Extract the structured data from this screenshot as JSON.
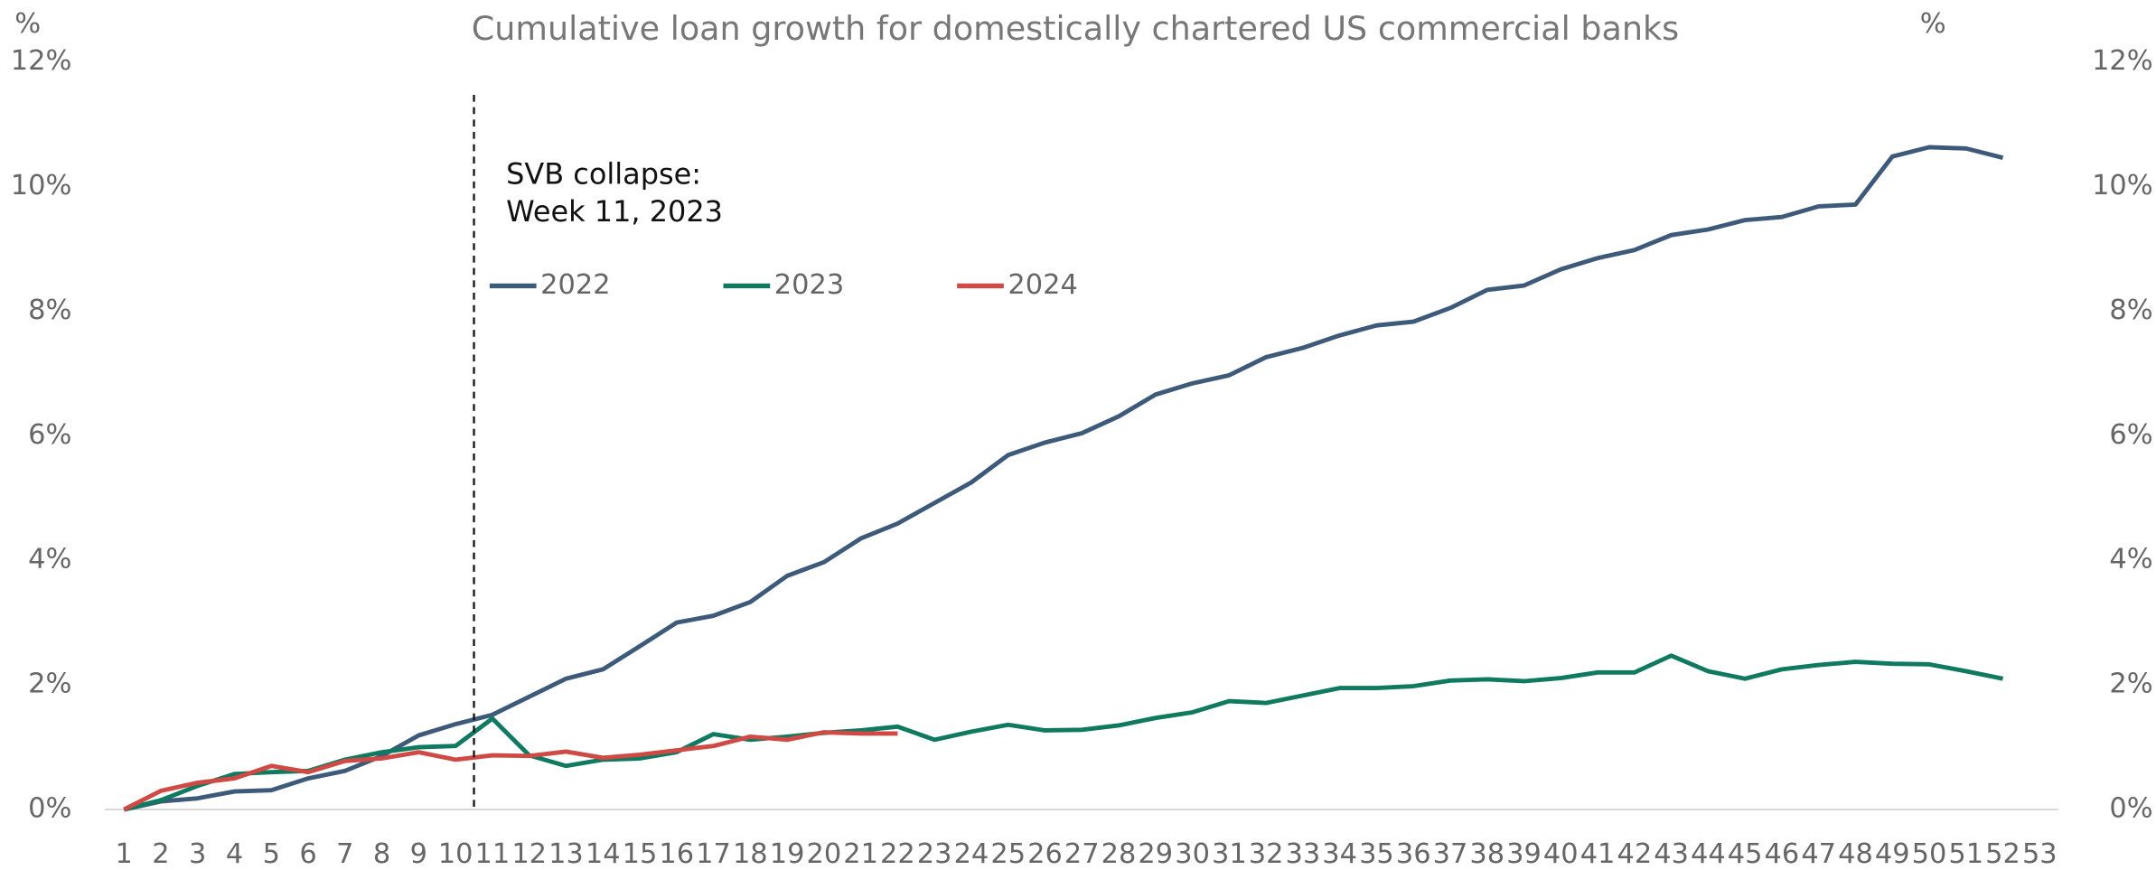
{
  "chart_data": {
    "type": "line",
    "title": "Cumulative loan growth for domestically chartered US commercial banks",
    "y_label": "%",
    "y2_label": "%",
    "categories": [
      "1",
      "2",
      "3",
      "4",
      "5",
      "6",
      "7",
      "8",
      "9",
      "10",
      "11",
      "12",
      "13",
      "14",
      "15",
      "16",
      "17",
      "18",
      "19",
      "20",
      "21",
      "22",
      "23",
      "24",
      "25",
      "26",
      "27",
      "28",
      "29",
      "30",
      "31",
      "32",
      "33",
      "34",
      "35",
      "36",
      "37",
      "38",
      "39",
      "40",
      "41",
      "42",
      "43",
      "44",
      "45",
      "46",
      "47",
      "48",
      "49",
      "50",
      "51",
      "52",
      "53"
    ],
    "series": [
      {
        "name": "2022",
        "color": "#3d5a7a",
        "values": [
          0,
          0.13,
          0.18,
          0.29,
          0.31,
          0.5,
          0.62,
          0.86,
          1.19,
          1.37,
          1.52,
          1.81,
          2.1,
          2.25,
          2.62,
          3.0,
          3.11,
          3.33,
          3.75,
          3.97,
          4.35,
          4.59,
          4.92,
          5.25,
          5.69,
          5.89,
          6.04,
          6.31,
          6.66,
          6.84,
          6.97,
          7.26,
          7.41,
          7.61,
          7.77,
          7.83,
          8.05,
          8.34,
          8.41,
          8.67,
          8.85,
          8.98,
          9.22,
          9.31,
          9.46,
          9.51,
          9.68,
          9.71,
          10.48,
          10.63,
          10.61,
          10.46,
          null
        ]
      },
      {
        "name": "2023",
        "color": "#0f7a5f",
        "values": [
          0,
          0.15,
          0.38,
          0.57,
          0.6,
          0.62,
          0.8,
          0.92,
          1.0,
          1.02,
          1.46,
          0.87,
          0.7,
          0.8,
          0.82,
          0.92,
          1.21,
          1.12,
          1.17,
          1.23,
          1.27,
          1.33,
          1.12,
          1.25,
          1.36,
          1.27,
          1.28,
          1.35,
          1.47,
          1.56,
          1.74,
          1.71,
          1.83,
          1.95,
          1.95,
          1.98,
          2.07,
          2.09,
          2.06,
          2.11,
          2.2,
          2.2,
          2.47,
          2.22,
          2.1,
          2.25,
          2.32,
          2.37,
          2.34,
          2.33,
          2.22,
          2.1,
          null
        ]
      },
      {
        "name": "2024",
        "color": "#d04a45",
        "values": [
          0,
          0.3,
          0.43,
          0.5,
          0.7,
          0.6,
          0.78,
          0.82,
          0.92,
          0.8,
          0.87,
          0.86,
          0.93,
          0.83,
          0.88,
          0.95,
          1.02,
          1.17,
          1.12,
          1.24,
          1.22,
          1.22,
          null,
          null,
          null,
          null,
          null,
          null,
          null,
          null,
          null,
          null,
          null,
          null,
          null,
          null,
          null,
          null,
          null,
          null,
          null,
          null,
          null,
          null,
          null,
          null,
          null,
          null,
          null,
          null,
          null,
          null,
          null
        ]
      }
    ],
    "ylim": [
      0,
      12
    ],
    "yticks": [
      {
        "value": 0,
        "label": "0%"
      },
      {
        "value": 2,
        "label": "2%"
      },
      {
        "value": 4,
        "label": "4%"
      },
      {
        "value": 6,
        "label": "6%"
      },
      {
        "value": 8,
        "label": "8%"
      },
      {
        "value": 10,
        "label": "10%"
      },
      {
        "value": 12,
        "label": "12%"
      }
    ],
    "y2lim": [
      0,
      12
    ],
    "y2ticks": [
      {
        "value": 0,
        "label": "0%"
      },
      {
        "value": 2,
        "label": "2%"
      },
      {
        "value": 4,
        "label": "4%"
      },
      {
        "value": 6,
        "label": "6%"
      },
      {
        "value": 8,
        "label": "8%"
      },
      {
        "value": 10,
        "label": "10%"
      },
      {
        "value": 12,
        "label": "12%"
      }
    ],
    "annotation": {
      "lines": [
        "SVB collapse:",
        "Week 11, 2023"
      ],
      "x": 10.5
    },
    "legend": "top-left",
    "grid": false
  }
}
